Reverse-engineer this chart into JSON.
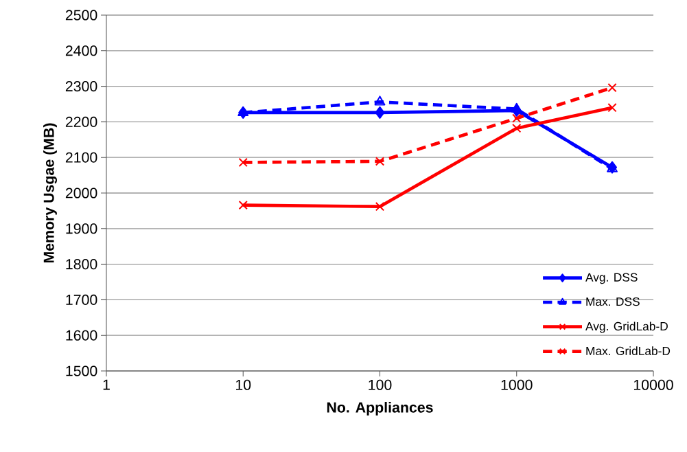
{
  "chart_data": {
    "type": "line",
    "xlabel": "No. Appliances",
    "ylabel": "Memory Usgae (MB)",
    "log": "x",
    "x": [
      10,
      100,
      1000,
      5000
    ],
    "xlim": [
      1,
      10000
    ],
    "xticks": [
      1,
      10,
      100,
      1000,
      10000
    ],
    "ylim": [
      1500,
      2500
    ],
    "yticks": [
      1500,
      1600,
      1700,
      1800,
      1900,
      2000,
      2100,
      2200,
      2300,
      2400,
      2500
    ],
    "grid": "y",
    "legend": "bottom right",
    "series": [
      {
        "name": "Avg. DSS",
        "color": "#0000ff",
        "marker": "diamond",
        "line_style": "solid",
        "values": [
          2226,
          2226,
          2232,
          2072
        ]
      },
      {
        "name": "Max. DSS",
        "color": "#0000ff",
        "marker": "triangle",
        "line_style": "dashed",
        "values": [
          2226,
          2256,
          2236,
          2068
        ]
      },
      {
        "name": "Avg. GridLab-D",
        "color": "#ff0000",
        "marker": "cross",
        "line_style": "solid",
        "values": [
          1966,
          1962,
          2182,
          2240
        ]
      },
      {
        "name": "Max. GridLab-D",
        "color": "#ff0000",
        "marker": "cross",
        "line_style": "dashed",
        "values": [
          2086,
          2089,
          2210,
          2296
        ]
      }
    ]
  }
}
